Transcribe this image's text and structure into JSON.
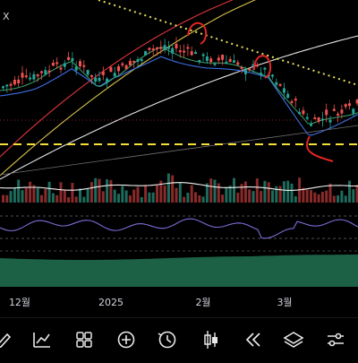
{
  "corner_label": "X",
  "x_axis_labels": [
    "12월",
    "2025",
    "2월",
    "3월"
  ],
  "toolbar": {
    "buttons": [
      {
        "name": "pencil-draw-icon"
      },
      {
        "name": "indicators-chart-icon"
      },
      {
        "name": "layout-grid-icon"
      },
      {
        "name": "add-plus-icon"
      },
      {
        "name": "clock-replay-icon"
      },
      {
        "name": "candlestick-chart-type-icon"
      },
      {
        "name": "rewind-icon"
      },
      {
        "name": "layers-icon"
      },
      {
        "name": "settings-sliders-icon"
      }
    ]
  },
  "colors": {
    "background": "#000000",
    "candle_up": "#26a69a",
    "candle_down": "#ef5350",
    "dashed_level": "#f5e03a",
    "trendline_dotted": "#e8e05a",
    "ma_red": "#e0343c",
    "ma_yellow": "#d8c24a",
    "ma_white": "#e6e6e6",
    "ma_blue": "#3d6fe8",
    "rsi_line": "#7e6bd6",
    "oscillator_fill": "#1f6b4c",
    "annotation_red": "#e32626"
  }
}
